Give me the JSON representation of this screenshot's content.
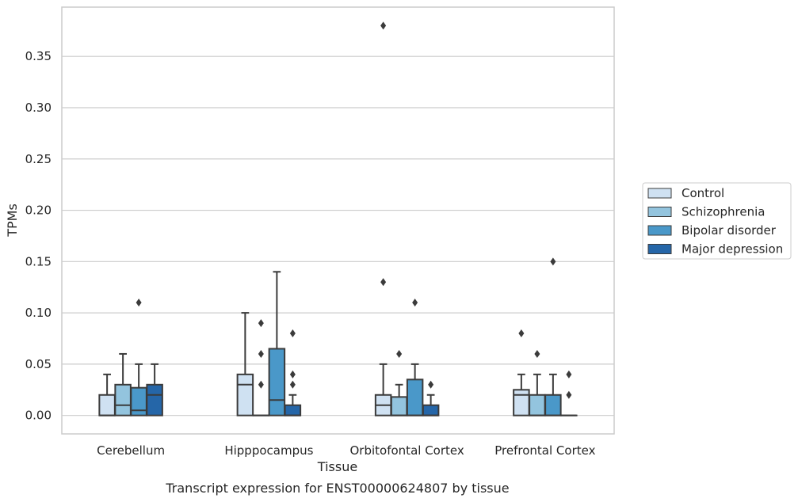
{
  "caption": "Transcript expression for ENST00000624807 by tissue",
  "chart_data": {
    "type": "boxplot",
    "xlabel": "Tissue",
    "ylabel": "TPMs",
    "ylim": [
      -0.018,
      0.398
    ],
    "yticks": [
      "0.00",
      "0.05",
      "0.10",
      "0.15",
      "0.20",
      "0.25",
      "0.30",
      "0.35"
    ],
    "grid": "horizontal",
    "legend_position": "right",
    "categories": [
      "Cerebellum",
      "Hipppocampus",
      "Orbitofontal Cortex",
      "Prefrontal Cortex"
    ],
    "series": [
      {
        "name": "Control",
        "color": "#cfe1f2",
        "boxes": [
          {
            "q1": 0.0,
            "median": 0.0,
            "q3": 0.02,
            "whislo": 0.0,
            "whishi": 0.04,
            "fliers": []
          },
          {
            "q1": 0.0,
            "median": 0.03,
            "q3": 0.04,
            "whislo": 0.0,
            "whishi": 0.1,
            "fliers": []
          },
          {
            "q1": 0.0,
            "median": 0.01,
            "q3": 0.02,
            "whislo": 0.0,
            "whishi": 0.05,
            "fliers": [
              0.13,
              0.38
            ]
          },
          {
            "q1": 0.0,
            "median": 0.02,
            "q3": 0.025,
            "whislo": 0.0,
            "whishi": 0.04,
            "fliers": [
              0.08
            ]
          }
        ]
      },
      {
        "name": "Schizophrenia",
        "color": "#93c4de",
        "boxes": [
          {
            "q1": 0.0,
            "median": 0.01,
            "q3": 0.03,
            "whislo": 0.0,
            "whishi": 0.06,
            "fliers": []
          },
          {
            "q1": 0.0,
            "median": 0.0,
            "q3": 0.0,
            "whislo": 0.0,
            "whishi": 0.0,
            "fliers": [
              0.03,
              0.06,
              0.09
            ]
          },
          {
            "q1": 0.0,
            "median": 0.0,
            "q3": 0.018,
            "whislo": 0.0,
            "whishi": 0.03,
            "fliers": [
              0.06
            ]
          },
          {
            "q1": 0.0,
            "median": 0.0,
            "q3": 0.02,
            "whislo": 0.0,
            "whishi": 0.04,
            "fliers": [
              0.06
            ]
          }
        ]
      },
      {
        "name": "Bipolar disorder",
        "color": "#4a98c9",
        "boxes": [
          {
            "q1": 0.0,
            "median": 0.005,
            "q3": 0.027,
            "whislo": 0.0,
            "whishi": 0.05,
            "fliers": [
              0.11
            ]
          },
          {
            "q1": 0.0,
            "median": 0.015,
            "q3": 0.065,
            "whislo": 0.0,
            "whishi": 0.14,
            "fliers": []
          },
          {
            "q1": 0.0,
            "median": 0.0,
            "q3": 0.035,
            "whislo": 0.0,
            "whishi": 0.05,
            "fliers": [
              0.11
            ]
          },
          {
            "q1": 0.0,
            "median": 0.0,
            "q3": 0.02,
            "whislo": 0.0,
            "whishi": 0.04,
            "fliers": [
              0.15
            ]
          }
        ]
      },
      {
        "name": "Major depression",
        "color": "#2566a8",
        "boxes": [
          {
            "q1": 0.0,
            "median": 0.02,
            "q3": 0.03,
            "whislo": 0.0,
            "whishi": 0.05,
            "fliers": []
          },
          {
            "q1": 0.0,
            "median": 0.0,
            "q3": 0.01,
            "whislo": 0.0,
            "whishi": 0.02,
            "fliers": [
              0.03,
              0.04,
              0.08
            ]
          },
          {
            "q1": 0.0,
            "median": 0.0,
            "q3": 0.01,
            "whislo": 0.0,
            "whishi": 0.02,
            "fliers": [
              0.03
            ]
          },
          {
            "q1": 0.0,
            "median": 0.0,
            "q3": 0.0,
            "whislo": 0.0,
            "whishi": 0.0,
            "fliers": [
              0.02,
              0.04
            ]
          }
        ]
      }
    ]
  }
}
